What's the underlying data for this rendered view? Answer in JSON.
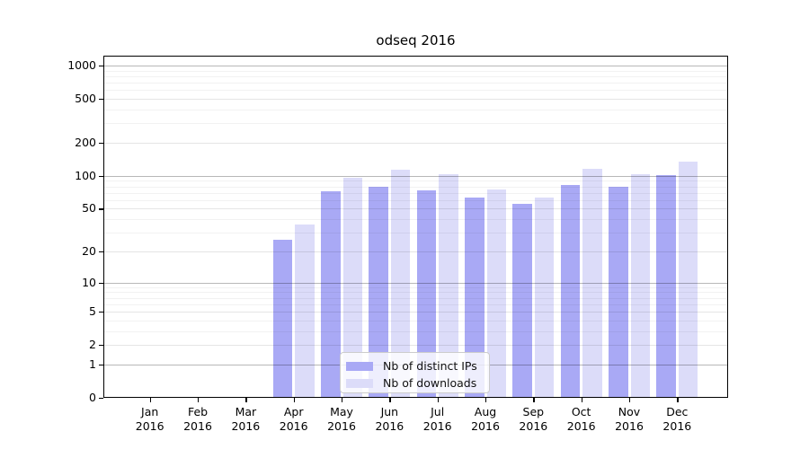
{
  "title": "odseq 2016",
  "colors": {
    "bar_distinct_ips": "#a9a9f5",
    "bar_downloads": "#dcdcf9",
    "grid_major": "rgba(0,0,0,0.28)",
    "grid_mid": "rgba(0,0,0,0.10)",
    "grid_minor": "rgba(0,0,0,0.05)",
    "axis": "#000000"
  },
  "legend": {
    "items": [
      {
        "label": "Nb of distinct IPs",
        "color": "#a9a9f5"
      },
      {
        "label": "Nb of downloads",
        "color": "#dcdcf9"
      }
    ]
  },
  "chart_data": {
    "type": "bar",
    "title": "odseq 2016",
    "xlabel": "",
    "ylabel": "",
    "x_categories": [
      {
        "month": "Jan",
        "year": "2016"
      },
      {
        "month": "Feb",
        "year": "2016"
      },
      {
        "month": "Mar",
        "year": "2016"
      },
      {
        "month": "Apr",
        "year": "2016"
      },
      {
        "month": "May",
        "year": "2016"
      },
      {
        "month": "Jun",
        "year": "2016"
      },
      {
        "month": "Jul",
        "year": "2016"
      },
      {
        "month": "Aug",
        "year": "2016"
      },
      {
        "month": "Sep",
        "year": "2016"
      },
      {
        "month": "Oct",
        "year": "2016"
      },
      {
        "month": "Nov",
        "year": "2016"
      },
      {
        "month": "Dec",
        "year": "2016"
      }
    ],
    "series": [
      {
        "name": "Nb of distinct IPs",
        "color": "#a9a9f5",
        "values": [
          0,
          0,
          0,
          26,
          72,
          80,
          74,
          63,
          55,
          83,
          80,
          101
        ]
      },
      {
        "name": "Nb of downloads",
        "color": "#dcdcf9",
        "values": [
          0,
          0,
          0,
          36,
          96,
          114,
          104,
          75,
          63,
          116,
          104,
          134
        ]
      }
    ],
    "y_axis": {
      "scale": "log1p",
      "tick_values": [
        0,
        1,
        2,
        5,
        10,
        20,
        50,
        100,
        200,
        500,
        1000
      ],
      "tick_labels": [
        "0",
        "1",
        "2",
        "5",
        "10",
        "20",
        "50",
        "100",
        "200",
        "500",
        "1000"
      ],
      "major_grid_values": [
        1,
        10,
        100,
        1000
      ],
      "mid_grid_values": [
        2,
        5,
        20,
        50,
        200,
        500
      ],
      "minor_grid_values": [
        3,
        4,
        6,
        7,
        8,
        9,
        30,
        40,
        60,
        70,
        80,
        90,
        300,
        400,
        600,
        700,
        800,
        900
      ],
      "ylim": [
        0,
        1236
      ]
    },
    "grid": true,
    "grid_above_bars": true,
    "legend_position": "inside-bottom-center"
  }
}
